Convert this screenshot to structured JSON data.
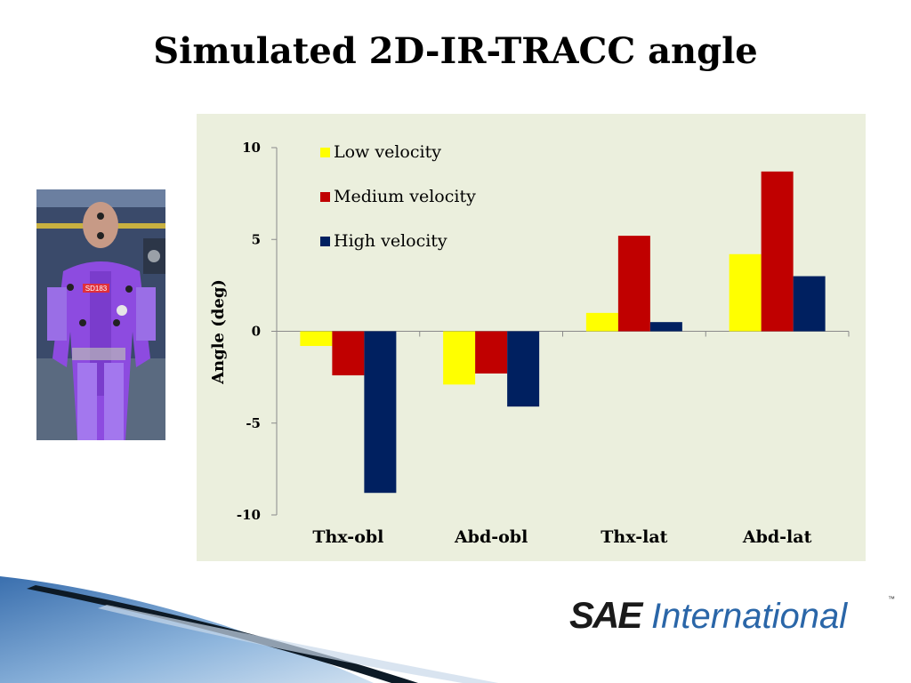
{
  "title": "Simulated 2D-IR-TRACC angle",
  "photo": {
    "badge_text": "SD183"
  },
  "logo": {
    "brand": "SAE",
    "name": "International",
    "trademark": "™"
  },
  "colors": {
    "panel_bg": "#ebefdd",
    "low": "#ffff00",
    "medium": "#c00000",
    "high": "#002060",
    "logo_blue": "#2a66a8"
  },
  "chart_data": {
    "type": "bar",
    "ylabel": "Angle (deg)",
    "xlabel": "",
    "ylim": [
      -10,
      10
    ],
    "yticks": [
      -10,
      -5,
      0,
      5,
      10
    ],
    "categories": [
      "Thx-obl",
      "Abd-obl",
      "Thx-lat",
      "Abd-lat"
    ],
    "series": [
      {
        "name": "Low velocity",
        "color": "#ffff00",
        "values": [
          -0.8,
          -2.9,
          1.0,
          4.2
        ]
      },
      {
        "name": "Medium velocity",
        "color": "#c00000",
        "values": [
          -2.4,
          -2.3,
          5.2,
          8.7
        ]
      },
      {
        "name": "High velocity",
        "color": "#002060",
        "values": [
          -8.8,
          -4.1,
          0.5,
          3.0
        ]
      }
    ],
    "legend_position": "top-left",
    "grid": false
  }
}
